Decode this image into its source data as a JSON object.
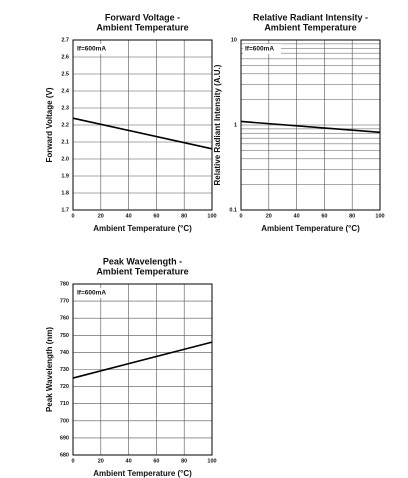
{
  "chart_data": [
    {
      "type": "line",
      "title": [
        "Forward Voltage -",
        "Ambient Temperature"
      ],
      "x_label": "Ambient Temperature (°C)",
      "y_label": "Forward Voltage (V)",
      "annotation": "If=600mA",
      "xlim": [
        0,
        100
      ],
      "xticks": [
        0,
        20,
        40,
        60,
        80,
        100
      ],
      "ylim": [
        1.7,
        2.7
      ],
      "yticks": [
        1.7,
        1.8,
        1.9,
        {
          "value": 2,
          "label": "2.0"
        },
        2.1,
        2.2,
        2.3,
        2.4,
        2.5,
        2.6,
        2.7
      ],
      "log_scale": false,
      "grid": true,
      "series": [
        {
          "x": [
            0,
            100
          ],
          "values": [
            2.24,
            2.06
          ],
          "color": "#000000"
        }
      ]
    },
    {
      "type": "line",
      "title": [
        "Relative Radiant Intensity -",
        "Ambient Temperature"
      ],
      "x_label": "Ambient Temperature (°C)",
      "y_label": "Relative Radiant Intensity (A.U.)",
      "annotation": "If=600mA",
      "xlim": [
        0,
        100
      ],
      "xticks": [
        0,
        20,
        40,
        60,
        80,
        100
      ],
      "ylim": [
        0.1,
        10
      ],
      "yticks": [
        0.1,
        1,
        10
      ],
      "log_scale": true,
      "grid": true,
      "series": [
        {
          "x": [
            0,
            100
          ],
          "values": [
            1.1,
            0.82
          ],
          "color": "#000000"
        }
      ]
    },
    {
      "type": "line",
      "title": [
        "Peak Wavelength -",
        "Ambient Temperature"
      ],
      "x_label": "Ambient Temperature (°C)",
      "y_label": "Peak Wavelength (nm)",
      "annotation": "If=600mA",
      "xlim": [
        0,
        100
      ],
      "xticks": [
        0,
        20,
        40,
        60,
        80,
        100
      ],
      "ylim": [
        680,
        780
      ],
      "yticks": [
        680,
        690,
        700,
        710,
        720,
        730,
        740,
        750,
        760,
        770,
        780
      ],
      "log_scale": false,
      "grid": true,
      "series": [
        {
          "x": [
            0,
            100
          ],
          "values": [
            725,
            746
          ],
          "color": "#000000"
        }
      ]
    }
  ]
}
